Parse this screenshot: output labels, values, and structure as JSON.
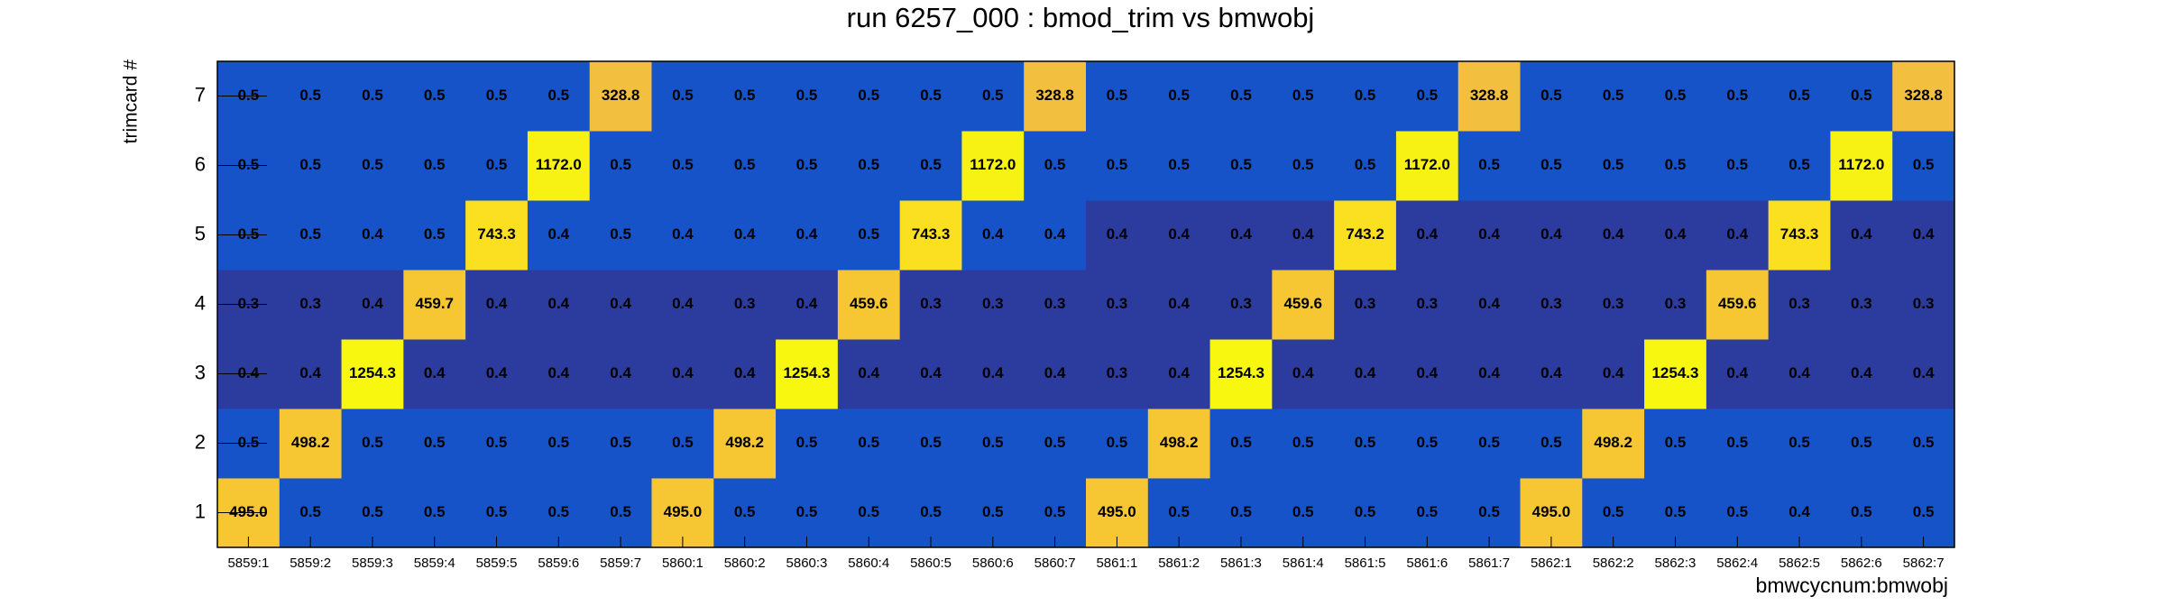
{
  "chart_data": {
    "type": "heatmap",
    "title": "run 6257_000 : bmod_trim vs bmwobj",
    "x_label": "bmwcycnum:bmwobj",
    "y_label": "trimcard #",
    "categories": [
      "5859:1",
      "5859:2",
      "5859:3",
      "5859:4",
      "5859:5",
      "5859:6",
      "5859:7",
      "5860:1",
      "5860:2",
      "5860:3",
      "5860:4",
      "5860:5",
      "5860:6",
      "5860:7",
      "5861:1",
      "5861:2",
      "5861:3",
      "5861:4",
      "5861:5",
      "5861:6",
      "5861:7",
      "5862:1",
      "5862:2",
      "5862:3",
      "5862:4",
      "5862:5",
      "5862:6",
      "5862:7"
    ],
    "y_categories": [
      "1",
      "2",
      "3",
      "4",
      "5",
      "6",
      "7"
    ],
    "z": [
      {
        "values": [
          495.0,
          0.5,
          0.5,
          0.5,
          0.5,
          0.5,
          0.5,
          495.0,
          0.5,
          0.5,
          0.5,
          0.5,
          0.5,
          0.5,
          495.0,
          0.5,
          0.5,
          0.5,
          0.5,
          0.5,
          0.5,
          495.0,
          0.5,
          0.5,
          0.5,
          0.4,
          0.5,
          0.5
        ],
        "value_labels": [
          "495.0",
          "0.5",
          "0.5",
          "0.5",
          "0.5",
          "0.5",
          "0.5",
          "495.0",
          "0.5",
          "0.5",
          "0.5",
          "0.5",
          "0.5",
          "0.5",
          "495.0",
          "0.5",
          "0.5",
          "0.5",
          "0.5",
          "0.5",
          "0.5",
          "495.0",
          "0.5",
          "0.5",
          "0.5",
          "0.4",
          "0.5",
          "0.5"
        ],
        "colors": [
          "#f6c733",
          "#1753c8",
          "#1753c8",
          "#1753c8",
          "#1753c8",
          "#1753c8",
          "#1753c8",
          "#f6c733",
          "#1753c8",
          "#1753c8",
          "#1753c8",
          "#1753c8",
          "#1753c8",
          "#1753c8",
          "#f6c733",
          "#1753c8",
          "#1753c8",
          "#1753c8",
          "#1753c8",
          "#1753c8",
          "#1753c8",
          "#f6c733",
          "#1753c8",
          "#1753c8",
          "#1753c8",
          "#1753c8",
          "#1753c8",
          "#1753c8"
        ]
      },
      {
        "values": [
          0.5,
          498.2,
          0.5,
          0.5,
          0.5,
          0.5,
          0.5,
          0.5,
          498.2,
          0.5,
          0.5,
          0.5,
          0.5,
          0.5,
          0.5,
          498.2,
          0.5,
          0.5,
          0.5,
          0.5,
          0.5,
          0.5,
          498.2,
          0.5,
          0.5,
          0.5,
          0.5,
          0.5
        ],
        "value_labels": [
          "0.5",
          "498.2",
          "0.5",
          "0.5",
          "0.5",
          "0.5",
          "0.5",
          "0.5",
          "498.2",
          "0.5",
          "0.5",
          "0.5",
          "0.5",
          "0.5",
          "0.5",
          "498.2",
          "0.5",
          "0.5",
          "0.5",
          "0.5",
          "0.5",
          "0.5",
          "498.2",
          "0.5",
          "0.5",
          "0.5",
          "0.5",
          "0.5"
        ],
        "colors": [
          "#1753c8",
          "#f6c733",
          "#1753c8",
          "#1753c8",
          "#1753c8",
          "#1753c8",
          "#1753c8",
          "#1753c8",
          "#f6c733",
          "#1753c8",
          "#1753c8",
          "#1753c8",
          "#1753c8",
          "#1753c8",
          "#1753c8",
          "#f6c733",
          "#1753c8",
          "#1753c8",
          "#1753c8",
          "#1753c8",
          "#1753c8",
          "#1753c8",
          "#f6c733",
          "#1753c8",
          "#1753c8",
          "#1753c8",
          "#1753c8",
          "#1753c8"
        ]
      },
      {
        "values": [
          0.4,
          0.4,
          1254.3,
          0.4,
          0.4,
          0.4,
          0.4,
          0.4,
          0.4,
          1254.3,
          0.4,
          0.4,
          0.4,
          0.4,
          0.3,
          0.4,
          1254.3,
          0.4,
          0.4,
          0.4,
          0.4,
          0.4,
          0.4,
          1254.3,
          0.4,
          0.4,
          0.4,
          0.4
        ],
        "value_labels": [
          "0.4",
          "0.4",
          "1254.3",
          "0.4",
          "0.4",
          "0.4",
          "0.4",
          "0.4",
          "0.4",
          "1254.3",
          "0.4",
          "0.4",
          "0.4",
          "0.4",
          "0.3",
          "0.4",
          "1254.3",
          "0.4",
          "0.4",
          "0.4",
          "0.4",
          "0.4",
          "0.4",
          "1254.3",
          "0.4",
          "0.4",
          "0.4",
          "0.4"
        ],
        "colors": [
          "#2b3c9e",
          "#2b3c9e",
          "#f7f70f",
          "#2b3c9e",
          "#2b3c9e",
          "#2b3c9e",
          "#2b3c9e",
          "#2b3c9e",
          "#2b3c9e",
          "#f7f70f",
          "#2b3c9e",
          "#2b3c9e",
          "#2b3c9e",
          "#2b3c9e",
          "#2b3c9e",
          "#2b3c9e",
          "#f7f70f",
          "#2b3c9e",
          "#2b3c9e",
          "#2b3c9e",
          "#2b3c9e",
          "#2b3c9e",
          "#2b3c9e",
          "#f7f70f",
          "#2b3c9e",
          "#2b3c9e",
          "#2b3c9e",
          "#2b3c9e"
        ]
      },
      {
        "values": [
          0.3,
          0.3,
          0.4,
          459.7,
          0.4,
          0.4,
          0.4,
          0.4,
          0.3,
          0.4,
          459.6,
          0.3,
          0.3,
          0.3,
          0.3,
          0.4,
          0.3,
          459.6,
          0.3,
          0.3,
          0.4,
          0.3,
          0.3,
          0.3,
          459.6,
          0.3,
          0.3,
          0.3
        ],
        "value_labels": [
          "0.3",
          "0.3",
          "0.4",
          "459.7",
          "0.4",
          "0.4",
          "0.4",
          "0.4",
          "0.3",
          "0.4",
          "459.6",
          "0.3",
          "0.3",
          "0.3",
          "0.3",
          "0.4",
          "0.3",
          "459.6",
          "0.3",
          "0.3",
          "0.4",
          "0.3",
          "0.3",
          "0.3",
          "459.6",
          "0.3",
          "0.3",
          "0.3"
        ],
        "colors": [
          "#2b3c9e",
          "#2b3c9e",
          "#2b3c9e",
          "#f6c733",
          "#2b3c9e",
          "#2b3c9e",
          "#2b3c9e",
          "#2b3c9e",
          "#2b3c9e",
          "#2b3c9e",
          "#f6c733",
          "#2b3c9e",
          "#2b3c9e",
          "#2b3c9e",
          "#2b3c9e",
          "#2b3c9e",
          "#2b3c9e",
          "#f6c733",
          "#2b3c9e",
          "#2b3c9e",
          "#2b3c9e",
          "#2b3c9e",
          "#2b3c9e",
          "#2b3c9e",
          "#f6c733",
          "#2b3c9e",
          "#2b3c9e",
          "#2b3c9e"
        ]
      },
      {
        "values": [
          0.5,
          0.5,
          0.4,
          0.5,
          743.3,
          0.4,
          0.5,
          0.4,
          0.4,
          0.4,
          0.5,
          743.3,
          0.4,
          0.4,
          0.4,
          0.4,
          0.4,
          0.4,
          743.2,
          0.4,
          0.4,
          0.4,
          0.4,
          0.4,
          0.4,
          743.3,
          0.4,
          0.4
        ],
        "value_labels": [
          "0.5",
          "0.5",
          "0.4",
          "0.5",
          "743.3",
          "0.4",
          "0.5",
          "0.4",
          "0.4",
          "0.4",
          "0.5",
          "743.3",
          "0.4",
          "0.4",
          "0.4",
          "0.4",
          "0.4",
          "0.4",
          "743.2",
          "0.4",
          "0.4",
          "0.4",
          "0.4",
          "0.4",
          "0.4",
          "743.3",
          "0.4",
          "0.4"
        ],
        "colors": [
          "#1753c8",
          "#1753c8",
          "#1753c8",
          "#1753c8",
          "#fbdf21",
          "#1753c8",
          "#1753c8",
          "#1753c8",
          "#1753c8",
          "#1753c8",
          "#1753c8",
          "#fbdf21",
          "#1753c8",
          "#1753c8",
          "#2b3c9e",
          "#2b3c9e",
          "#2b3c9e",
          "#2b3c9e",
          "#fbdf21",
          "#2b3c9e",
          "#2b3c9e",
          "#2b3c9e",
          "#2b3c9e",
          "#2b3c9e",
          "#2b3c9e",
          "#fbdf21",
          "#2b3c9e",
          "#2b3c9e"
        ]
      },
      {
        "values": [
          0.5,
          0.5,
          0.5,
          0.5,
          0.5,
          1172.0,
          0.5,
          0.5,
          0.5,
          0.5,
          0.5,
          0.5,
          1172.0,
          0.5,
          0.5,
          0.5,
          0.5,
          0.5,
          0.5,
          1172.0,
          0.5,
          0.5,
          0.5,
          0.5,
          0.5,
          0.5,
          1172.0,
          0.5
        ],
        "value_labels": [
          "0.5",
          "0.5",
          "0.5",
          "0.5",
          "0.5",
          "1172.0",
          "0.5",
          "0.5",
          "0.5",
          "0.5",
          "0.5",
          "0.5",
          "1172.0",
          "0.5",
          "0.5",
          "0.5",
          "0.5",
          "0.5",
          "0.5",
          "1172.0",
          "0.5",
          "0.5",
          "0.5",
          "0.5",
          "0.5",
          "0.5",
          "1172.0",
          "0.5"
        ],
        "colors": [
          "#1753c8",
          "#1753c8",
          "#1753c8",
          "#1753c8",
          "#1753c8",
          "#f8f214",
          "#1753c8",
          "#1753c8",
          "#1753c8",
          "#1753c8",
          "#1753c8",
          "#1753c8",
          "#f8f214",
          "#1753c8",
          "#1753c8",
          "#1753c8",
          "#1753c8",
          "#1753c8",
          "#1753c8",
          "#f8f214",
          "#1753c8",
          "#1753c8",
          "#1753c8",
          "#1753c8",
          "#1753c8",
          "#1753c8",
          "#f8f214",
          "#1753c8"
        ]
      },
      {
        "values": [
          0.5,
          0.5,
          0.5,
          0.5,
          0.5,
          0.5,
          328.8,
          0.5,
          0.5,
          0.5,
          0.5,
          0.5,
          0.5,
          328.8,
          0.5,
          0.5,
          0.5,
          0.5,
          0.5,
          0.5,
          328.8,
          0.5,
          0.5,
          0.5,
          0.5,
          0.5,
          0.5,
          328.8
        ],
        "value_labels": [
          "0.5",
          "0.5",
          "0.5",
          "0.5",
          "0.5",
          "0.5",
          "328.8",
          "0.5",
          "0.5",
          "0.5",
          "0.5",
          "0.5",
          "0.5",
          "328.8",
          "0.5",
          "0.5",
          "0.5",
          "0.5",
          "0.5",
          "0.5",
          "328.8",
          "0.5",
          "0.5",
          "0.5",
          "0.5",
          "0.5",
          "0.5",
          "328.8"
        ],
        "colors": [
          "#1753c8",
          "#1753c8",
          "#1753c8",
          "#1753c8",
          "#1753c8",
          "#1753c8",
          "#f2bf3f",
          "#1753c8",
          "#1753c8",
          "#1753c8",
          "#1753c8",
          "#1753c8",
          "#1753c8",
          "#f2bf3f",
          "#1753c8",
          "#1753c8",
          "#1753c8",
          "#1753c8",
          "#1753c8",
          "#1753c8",
          "#f2bf3f",
          "#1753c8",
          "#1753c8",
          "#1753c8",
          "#1753c8",
          "#1753c8",
          "#1753c8",
          "#f2bf3f"
        ]
      }
    ]
  }
}
